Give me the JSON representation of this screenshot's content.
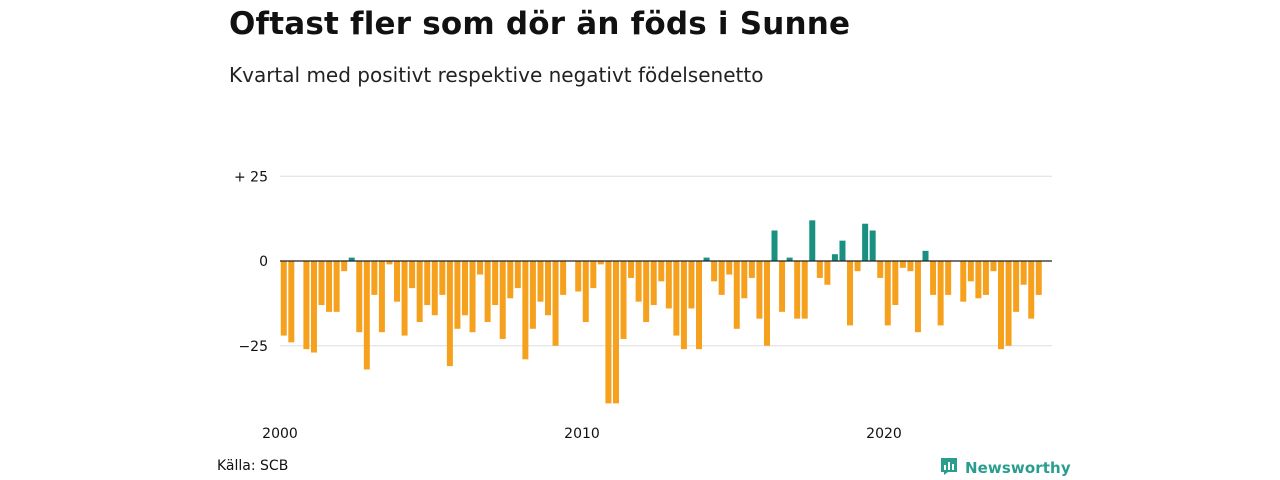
{
  "title": "Oftast fler som dör än föds i Sunne",
  "subtitle": "Kvartal med positivt respektive negativt födelsenetto",
  "source": "Källa: SCB",
  "brand": {
    "name": "Newsworthy",
    "icon": "newsworthy-logo-icon"
  },
  "colors": {
    "positive": "#1a9080",
    "negative": "#f5a11e",
    "grid": "#dddddd",
    "zero": "#222222"
  },
  "chart_data": {
    "type": "bar",
    "x_start": "2000 Q1",
    "ylim": [
      -42,
      25
    ],
    "y_ticks": [
      {
        "value": 25,
        "label": "+ 25"
      },
      {
        "value": 0,
        "label": "0"
      },
      {
        "value": -25,
        "label": "−25"
      }
    ],
    "x_ticks": [
      {
        "index": 0,
        "label": "2000"
      },
      {
        "index": 40,
        "label": "2010"
      },
      {
        "index": 80,
        "label": "2020"
      }
    ],
    "values": [
      -22,
      -24,
      0,
      -26,
      -27,
      -13,
      -15,
      -15,
      -3,
      1,
      -21,
      -32,
      -10,
      -21,
      -1,
      -12,
      -22,
      -8,
      -18,
      -13,
      -16,
      -10,
      -31,
      -20,
      -16,
      -21,
      -4,
      -18,
      -13,
      -23,
      -11,
      -8,
      -29,
      -20,
      -12,
      -16,
      -25,
      -10,
      0,
      -9,
      -18,
      -8,
      -1,
      -42,
      -42,
      -23,
      -5,
      -12,
      -18,
      -13,
      -6,
      -14,
      -22,
      -26,
      -14,
      -26,
      1,
      -6,
      -10,
      -4,
      -20,
      -11,
      -5,
      -17,
      -25,
      9,
      -15,
      1,
      -17,
      -17,
      12,
      -5,
      -7,
      2,
      6,
      -19,
      -3,
      11,
      9,
      -5,
      -19,
      -13,
      -2,
      -3,
      -21,
      3,
      -10,
      -19,
      -10,
      0,
      -12,
      -6,
      -11,
      -10,
      -3,
      -26,
      -25,
      -15,
      -7,
      -17,
      -10
    ]
  }
}
